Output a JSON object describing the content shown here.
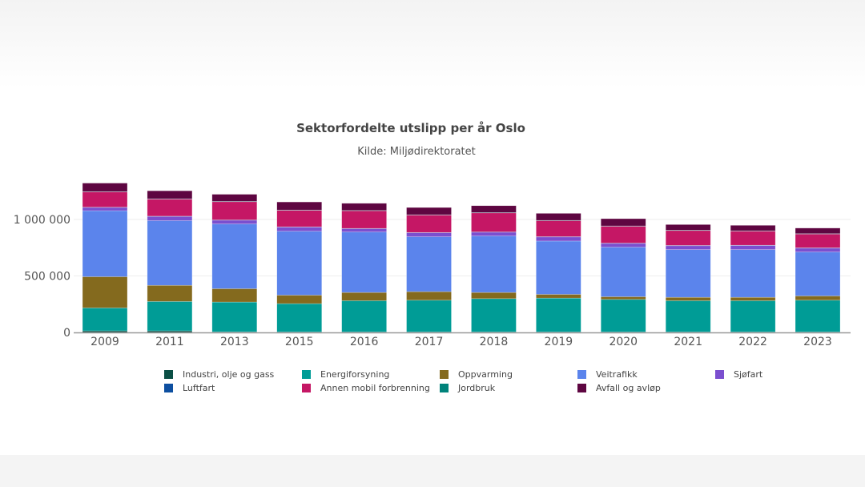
{
  "chart_data": {
    "type": "bar",
    "stacked": true,
    "title": "Sektorfordelte utslipp per år Oslo",
    "subtitle": "Kilde: Miljødirektoratet",
    "xlabel": "",
    "ylabel": "",
    "ylim": [
      0,
      1350000
    ],
    "yticks": [
      0,
      500000,
      1000000
    ],
    "ytick_labels": [
      "0",
      "500 000",
      "1 000 000"
    ],
    "grid": true,
    "legend_position": "bottom",
    "categories": [
      "2009",
      "2011",
      "2013",
      "2015",
      "2016",
      "2017",
      "2018",
      "2019",
      "2020",
      "2021",
      "2022",
      "2023"
    ],
    "series": [
      {
        "name": "Industri, olje og gass",
        "color": "#0b4f45",
        "values": [
          14000,
          14000,
          5000,
          4000,
          4000,
          4000,
          4000,
          4000,
          4000,
          4000,
          4000,
          4000
        ]
      },
      {
        "name": "Energiforsyning",
        "color": "#009c96",
        "values": [
          203000,
          260000,
          264000,
          251000,
          277000,
          281000,
          295000,
          300000,
          288000,
          277000,
          277000,
          281000
        ]
      },
      {
        "name": "Oppvarming",
        "color": "#846a1e",
        "values": [
          276000,
          143000,
          118000,
          75000,
          73000,
          76000,
          55000,
          33000,
          24000,
          30000,
          30000,
          38000
        ]
      },
      {
        "name": "Veitrafikk",
        "color": "#5b84ec",
        "values": [
          585000,
          573000,
          573000,
          566000,
          535000,
          486000,
          500000,
          472000,
          439000,
          422000,
          422000,
          389000
        ]
      },
      {
        "name": "Sjøfart",
        "color": "#7b4fcf",
        "values": [
          30000,
          38000,
          35000,
          38000,
          31000,
          37000,
          35000,
          38000,
          35000,
          36000,
          38000,
          36000
        ]
      },
      {
        "name": "Luftfart",
        "color": "#0d4fa0",
        "values": [
          1000,
          1000,
          1000,
          1000,
          1000,
          1000,
          1000,
          1000,
          1000,
          1000,
          1000,
          1000
        ]
      },
      {
        "name": "Annen mobil forbrenning",
        "color": "#c51765",
        "values": [
          137000,
          153000,
          163000,
          148000,
          158000,
          156000,
          170000,
          143000,
          151000,
          134000,
          127000,
          124000
        ]
      },
      {
        "name": "Jordbruk",
        "color": "#00837b",
        "values": [
          1000,
          1000,
          1000,
          1000,
          1000,
          1000,
          1000,
          1000,
          1000,
          1000,
          1000,
          1000
        ]
      },
      {
        "name": "Avfall og avløp",
        "color": "#5e0641",
        "values": [
          75000,
          71000,
          63000,
          71000,
          63000,
          64000,
          61000,
          62000,
          64000,
          50000,
          48000,
          50000
        ]
      }
    ]
  }
}
